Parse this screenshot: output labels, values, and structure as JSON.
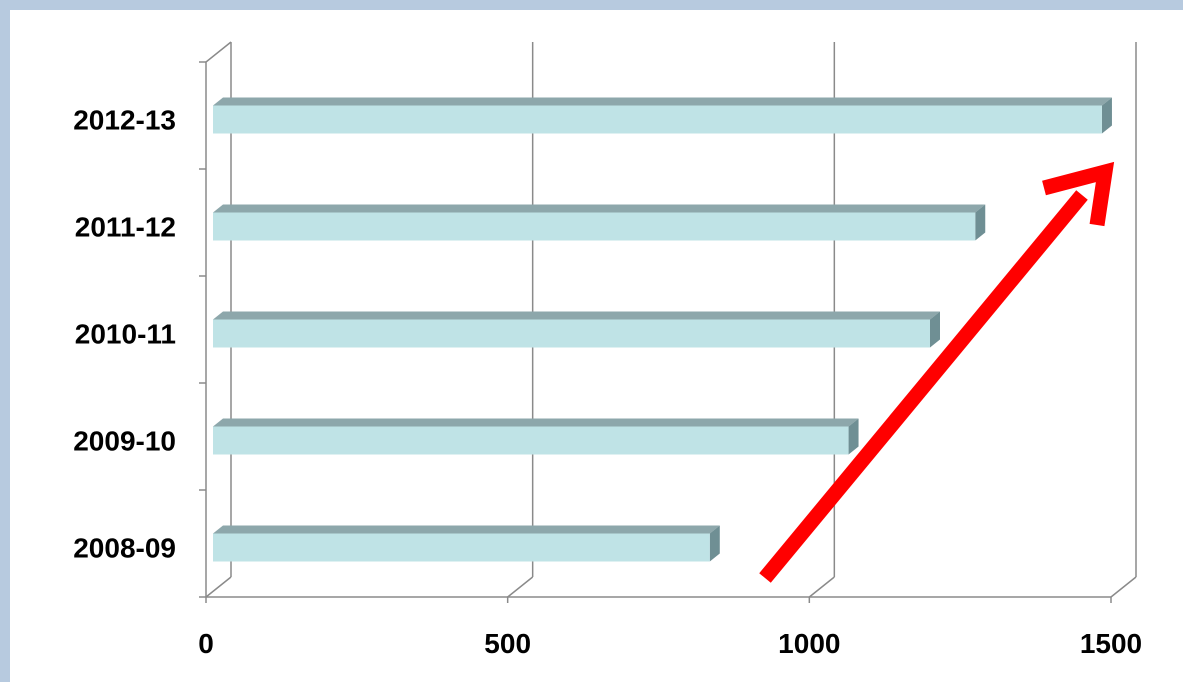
{
  "chart_data": {
    "type": "bar",
    "orientation": "horizontal",
    "title": "",
    "xlabel": "",
    "ylabel": "",
    "categories": [
      "2008-09",
      "2009-10",
      "2010-11",
      "2011-12",
      "2012-13"
    ],
    "values": [
      835,
      1065,
      1200,
      1275,
      1485
    ],
    "x_ticks": [
      "0",
      "500",
      "1000",
      "1500"
    ],
    "xlim": [
      0,
      1500
    ],
    "grid": true,
    "legend": "none",
    "colors": {
      "bar_face": "#bfe3e6",
      "bar_top": "#8da7ab",
      "bar_side": "#6f8f94",
      "grid": "#8a8a8a",
      "arrow": "#ff0000"
    },
    "annotation": "red upward arrow indicating growth"
  }
}
